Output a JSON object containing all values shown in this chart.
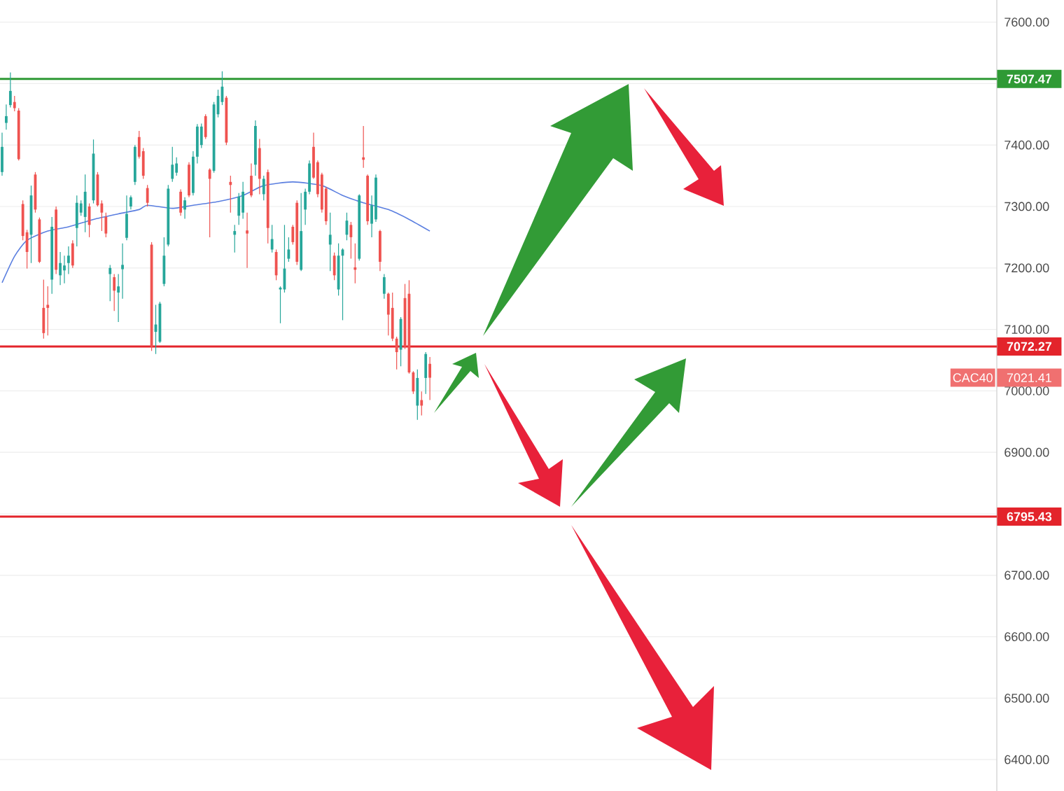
{
  "chart_data": {
    "type": "candlestick",
    "categories": [
      null,
      null,
      null,
      null,
      null,
      null,
      null,
      null,
      null,
      null,
      null,
      null,
      null,
      null,
      null,
      null,
      null,
      null,
      null,
      null,
      null,
      null,
      null,
      null,
      null,
      null,
      null,
      null,
      null,
      null,
      null,
      null,
      null,
      null,
      null,
      null,
      null,
      null,
      null,
      null,
      null,
      null,
      null,
      null,
      null,
      null,
      null,
      null,
      null,
      null,
      null,
      null,
      null,
      null,
      null,
      null,
      null,
      null,
      null,
      null,
      null,
      null,
      null,
      null,
      null,
      null,
      null,
      null,
      null,
      null,
      null,
      null,
      null,
      null,
      null,
      null,
      null,
      null,
      null,
      null,
      null,
      null,
      null,
      null,
      null,
      null,
      null,
      null,
      null,
      null,
      null,
      null,
      null,
      null,
      null,
      null,
      null,
      null,
      null,
      null,
      null,
      null,
      null,
      null,
      null,
      null,
      null,
      null,
      null,
      null,
      null,
      null,
      null,
      null,
      null,
      null,
      null,
      null,
      null,
      null,
      null,
      null,
      null,
      null,
      null,
      null,
      null,
      null,
      null,
      null,
      null,
      null,
      null,
      null,
      null,
      null,
      null,
      null,
      null,
      null,
      null,
      null,
      null,
      null,
      null,
      null,
      null,
      null,
      null,
      null,
      null,
      null,
      null,
      null,
      null,
      null,
      null,
      null,
      null,
      null,
      null,
      null,
      null,
      null,
      null,
      null,
      null,
      null,
      null,
      null,
      null,
      null,
      null,
      null,
      null,
      null,
      null,
      null,
      null,
      null,
      null,
      null,
      null,
      null,
      null,
      null,
      null,
      null,
      null,
      null,
      null,
      null,
      null,
      null,
      null,
      null,
      null,
      null,
      null,
      null,
      null,
      null,
      null,
      null,
      null,
      null,
      null,
      null,
      null,
      null,
      null,
      null,
      null,
      null,
      null,
      null,
      null,
      null,
      null,
      null,
      null,
      null,
      null,
      null,
      null,
      null,
      null,
      null,
      null,
      null,
      null,
      null,
      null,
      null,
      null,
      null,
      null,
      null,
      null,
      null
    ],
    "ohlc": [
      [
        7356,
        7420,
        7350,
        7397
      ],
      [
        7436,
        7466,
        7425,
        7447
      ],
      [
        7465,
        7518,
        7461,
        7488
      ],
      [
        7470,
        7480,
        7455,
        7460
      ],
      [
        7456,
        7460,
        7375,
        7377
      ],
      [
        7304,
        7310,
        7245,
        7252
      ],
      [
        7258,
        7262,
        7199,
        7226
      ],
      [
        7254,
        7334,
        7208,
        7318
      ],
      [
        7352,
        7356,
        7290,
        7295
      ],
      [
        7279,
        7282,
        7208,
        7210
      ],
      [
        7135,
        7181,
        7085,
        7094
      ],
      [
        7140,
        7170,
        7090,
        7135
      ],
      [
        7181,
        7283,
        7158,
        7267
      ],
      [
        7295,
        7300,
        7190,
        7197
      ],
      [
        7188,
        7226,
        7172,
        7208
      ],
      [
        7196,
        7220,
        7175,
        7204
      ],
      [
        7208,
        7235,
        7190,
        7220
      ],
      [
        7240,
        7245,
        7200,
        7204
      ],
      [
        7265,
        7318,
        7235,
        7306
      ],
      [
        7290,
        7310,
        7285,
        7305
      ],
      [
        7283,
        7352,
        7258,
        7324
      ],
      [
        7300,
        7305,
        7250,
        7270
      ],
      [
        7310,
        7409,
        7305,
        7386
      ],
      [
        7352,
        7356,
        7300,
        7302
      ],
      [
        7305,
        7310,
        7260,
        7290
      ],
      [
        7283,
        7290,
        7250,
        7256
      ],
      [
        7190,
        7205,
        7146,
        7200
      ],
      [
        7185,
        7190,
        7130,
        7163
      ],
      [
        7160,
        7190,
        7112,
        7170
      ],
      [
        7198,
        7240,
        7150,
        7205
      ],
      [
        7249,
        7318,
        7245,
        7288
      ],
      [
        7300,
        7318,
        7295,
        7315
      ],
      [
        7340,
        7400,
        7335,
        7397
      ],
      [
        7413,
        7423,
        7378,
        7381
      ],
      [
        7390,
        7395,
        7345,
        7350
      ],
      [
        7330,
        7335,
        7300,
        7306
      ],
      [
        7238,
        7242,
        7065,
        7072
      ],
      [
        7096,
        7140,
        7060,
        7108
      ],
      [
        7080,
        7145,
        7078,
        7142
      ],
      [
        7174,
        7250,
        7170,
        7220
      ],
      [
        7238,
        7335,
        7235,
        7329
      ],
      [
        7345,
        7397,
        7340,
        7368
      ],
      [
        7355,
        7380,
        7350,
        7370
      ],
      [
        7324,
        7328,
        7285,
        7290
      ],
      [
        7295,
        7315,
        7280,
        7310
      ],
      [
        7368,
        7372,
        7315,
        7318
      ],
      [
        7322,
        7390,
        7318,
        7381
      ],
      [
        7381,
        7434,
        7370,
        7430
      ],
      [
        7400,
        7435,
        7395,
        7430
      ],
      [
        7447,
        7450,
        7410,
        7413
      ],
      [
        7360,
        7362,
        7250,
        7345
      ],
      [
        7358,
        7470,
        7355,
        7466
      ],
      [
        7450,
        7490,
        7445,
        7480
      ],
      [
        7470,
        7520,
        7465,
        7495
      ],
      [
        7477,
        7480,
        7400,
        7404
      ],
      [
        7340,
        7350,
        7290,
        7335
      ],
      [
        7254,
        7270,
        7225,
        7260
      ],
      [
        7285,
        7322,
        7270,
        7316
      ],
      [
        7290,
        7340,
        7280,
        7324
      ],
      [
        7261,
        7290,
        7200,
        7256
      ],
      [
        7350,
        7370,
        7315,
        7318
      ],
      [
        7368,
        7440,
        7350,
        7431
      ],
      [
        7395,
        7410,
        7320,
        7345
      ],
      [
        7320,
        7350,
        7310,
        7345
      ],
      [
        7356,
        7360,
        7240,
        7265
      ],
      [
        7230,
        7270,
        7225,
        7247
      ],
      [
        7226,
        7230,
        7180,
        7188
      ],
      [
        7165,
        7170,
        7110,
        7168
      ],
      [
        7165,
        7270,
        7160,
        7199
      ],
      [
        7215,
        7250,
        7210,
        7230
      ],
      [
        7267,
        7270,
        7238,
        7242
      ],
      [
        7306,
        7310,
        7205,
        7210
      ],
      [
        7197,
        7322,
        7195,
        7260
      ],
      [
        7295,
        7329,
        7270,
        7324
      ],
      [
        7324,
        7375,
        7320,
        7370
      ],
      [
        7397,
        7420,
        7345,
        7347
      ],
      [
        7372,
        7375,
        7315,
        7320
      ],
      [
        7352,
        7355,
        7290,
        7295
      ],
      [
        7329,
        7332,
        7270,
        7276
      ],
      [
        7238,
        7290,
        7195,
        7254
      ],
      [
        7220,
        7225,
        7180,
        7188
      ],
      [
        7165,
        7240,
        7155,
        7220
      ],
      [
        7220,
        7232,
        7115,
        7230
      ],
      [
        7254,
        7290,
        7245,
        7277
      ],
      [
        7270,
        7275,
        7215,
        7250
      ],
      [
        7201,
        7240,
        7175,
        7197
      ],
      [
        7215,
        7320,
        7212,
        7318
      ],
      [
        7380,
        7431,
        7363,
        7376
      ],
      [
        7350,
        7352,
        7270,
        7276
      ],
      [
        7272,
        7318,
        7250,
        7302
      ],
      [
        7279,
        7352,
        7275,
        7347
      ],
      [
        7260,
        7262,
        7195,
        7210
      ],
      [
        7158,
        7190,
        7150,
        7185
      ],
      [
        7158,
        7160,
        7090,
        7124
      ],
      [
        7135,
        7160,
        7081,
        7085
      ],
      [
        7085,
        7088,
        7035,
        7063
      ],
      [
        7067,
        7120,
        7040,
        7117
      ],
      [
        7151,
        7174,
        7068,
        7072
      ],
      [
        7158,
        7180,
        7028,
        7030
      ],
      [
        7030,
        7032,
        6995,
        6999
      ],
      [
        6976,
        7035,
        6953,
        7021
      ],
      [
        6985,
        6999,
        6960,
        6976
      ],
      [
        7021,
        7063,
        6995,
        7060
      ],
      [
        7044,
        7055,
        6985,
        7021.41
      ],
      null,
      null,
      null,
      null,
      null,
      null,
      null,
      null,
      null,
      null,
      null,
      null,
      null,
      null,
      null,
      null,
      null,
      null,
      null,
      null,
      null,
      null,
      null,
      null,
      null,
      null,
      null,
      null,
      null,
      null,
      null,
      null,
      null,
      null,
      null,
      null,
      null,
      null,
      null,
      null,
      null,
      null,
      null,
      null,
      null,
      null,
      null,
      null,
      null,
      null,
      null,
      null,
      null,
      null,
      null,
      null,
      null,
      null,
      null,
      null,
      null,
      null,
      null,
      null,
      null,
      null,
      null,
      null,
      null,
      null,
      null,
      null,
      null,
      null,
      null,
      null,
      null,
      null,
      null,
      null,
      null,
      null,
      null,
      null,
      null,
      null,
      null,
      null,
      null,
      null,
      null,
      null,
      null,
      null,
      null,
      null,
      null,
      null,
      null,
      null,
      null,
      null,
      null,
      null,
      null,
      null,
      null,
      null,
      null,
      null,
      null,
      null,
      null,
      null,
      null,
      null,
      null,
      null,
      null,
      null,
      null,
      null,
      null,
      null,
      null,
      null,
      null,
      null,
      null,
      null,
      null,
      null,
      null,
      null,
      null,
      null
    ],
    "colors": [
      "#26a69a",
      "#26a69a",
      "#26a69a",
      "#ef5350",
      "#ef5350",
      "#ef5350",
      "#ef5350",
      "#26a69a",
      "#ef5350",
      "#ef5350",
      "#ef5350",
      "#ef5350",
      "#26a69a",
      "#ef5350",
      "#26a69a",
      "#26a69a",
      "#26a69a",
      "#ef5350",
      "#26a69a",
      "#26a69a",
      "#26a69a",
      "#ef5350",
      "#26a69a",
      "#ef5350",
      "#ef5350",
      "#ef5350",
      "#26a69a",
      "#ef5350",
      "#26a69a",
      "#26a69a",
      "#26a69a",
      "#26a69a",
      "#26a69a",
      "#ef5350",
      "#ef5350",
      "#ef5350",
      "#ef5350",
      "#26a69a",
      "#26a69a",
      "#26a69a",
      "#26a69a",
      "#26a69a",
      "#26a69a",
      "#ef5350",
      "#26a69a",
      "#ef5350",
      "#26a69a",
      "#26a69a",
      "#26a69a",
      "#ef5350",
      "#ef5350",
      "#26a69a",
      "#26a69a",
      "#26a69a",
      "#ef5350",
      "#ef5350",
      "#26a69a",
      "#26a69a",
      "#26a69a",
      "#ef5350",
      "#ef5350",
      "#26a69a",
      "#ef5350",
      "#26a69a",
      "#ef5350",
      "#26a69a",
      "#ef5350",
      "#26a69a",
      "#26a69a",
      "#26a69a",
      "#ef5350",
      "#ef5350",
      "#26a69a",
      "#26a69a",
      "#26a69a",
      "#ef5350",
      "#ef5350",
      "#ef5350",
      "#ef5350",
      "#26a69a",
      "#ef5350",
      "#26a69a",
      "#26a69a",
      "#26a69a",
      "#ef5350",
      "#ef5350",
      "#26a69a",
      "#ef5350",
      "#ef5350",
      "#26a69a",
      "#26a69a",
      "#ef5350",
      "#26a69a",
      "#ef5350",
      "#ef5350",
      "#ef5350",
      "#26a69a",
      "#ef5350",
      "#ef5350",
      "#ef5350",
      "#26a69a",
      "#ef5350",
      "#26a69a",
      "#ef5350",
      null,
      null,
      null,
      null,
      null,
      null,
      null,
      null,
      null,
      null,
      null,
      null,
      null,
      null,
      null,
      null,
      null,
      null,
      null,
      null,
      null,
      null,
      null,
      null,
      null,
      null,
      null,
      null,
      null,
      null,
      null,
      null,
      null,
      null,
      null,
      null,
      null,
      null,
      null,
      null,
      null,
      null,
      null,
      null,
      null,
      null,
      null,
      null,
      null,
      null,
      null,
      null,
      null,
      null,
      null,
      null,
      null,
      null,
      null,
      null,
      null,
      null,
      null,
      null,
      null,
      null,
      null,
      null,
      null,
      null,
      null,
      null,
      null,
      null,
      null,
      null,
      null,
      null,
      null,
      null,
      null,
      null,
      null,
      null,
      null,
      null,
      null,
      null,
      null,
      null,
      null,
      null,
      null,
      null,
      null,
      null,
      null,
      null,
      null,
      null,
      null,
      null,
      null,
      null,
      null,
      null,
      null,
      null,
      null,
      null,
      null,
      null,
      null,
      null,
      null,
      null,
      null,
      null,
      null,
      null,
      null,
      null,
      null,
      null,
      null,
      null,
      null,
      null,
      null,
      null,
      null,
      null,
      null,
      null,
      null,
      null
    ],
    "series": [
      {
        "type": "line",
        "color": "#5b7fe0",
        "values": [
          7176,
          null,
          null,
          7219,
          null,
          null,
          7245,
          null,
          null,
          null,
          null,
          7260,
          null,
          null,
          null,
          null,
          7267,
          null,
          null,
          null,
          null,
          null,
          7279,
          null,
          null,
          null,
          null,
          null,
          7288,
          null,
          null,
          null,
          null,
          7295,
          null,
          7302,
          null,
          null,
          null,
          null,
          null,
          7297,
          null,
          null,
          null,
          null,
          7302,
          null,
          null,
          null,
          null,
          null,
          7308,
          null,
          null,
          null,
          null,
          null,
          7318,
          null,
          null,
          null,
          null,
          7334,
          null,
          null,
          null,
          null,
          null,
          null,
          7340,
          null,
          null,
          null,
          null,
          null,
          null,
          7334,
          null,
          null,
          null,
          null,
          7318,
          null,
          null,
          null,
          null,
          7306,
          null,
          null,
          null,
          null,
          null,
          7295,
          null,
          null,
          null,
          null,
          7279,
          null,
          null,
          null,
          null,
          7260,
          null,
          null,
          null,
          null,
          null,
          null,
          null,
          null,
          null,
          null,
          null,
          null,
          null,
          null,
          null,
          null,
          null,
          null,
          null,
          null,
          null,
          null,
          null,
          null,
          null,
          null,
          null,
          null,
          null,
          null,
          null,
          null,
          null,
          null,
          null,
          null,
          null,
          null,
          null,
          null,
          null,
          null,
          null,
          null,
          null,
          null,
          null,
          null,
          null,
          null,
          null,
          null,
          null,
          null,
          null,
          null,
          null,
          null,
          null,
          null,
          null,
          null,
          null,
          null,
          null,
          null,
          null,
          null,
          null,
          null,
          null,
          null,
          null,
          null,
          null,
          null,
          null,
          null,
          null,
          null,
          null,
          null,
          null,
          null,
          null,
          null,
          null,
          null,
          null,
          null,
          null,
          null,
          null,
          null,
          null,
          null,
          null,
          null,
          null,
          null,
          null,
          null,
          null,
          null,
          null,
          null,
          null,
          null,
          null,
          null,
          null,
          null,
          null,
          null,
          null,
          null,
          null,
          null,
          null,
          null,
          null,
          null,
          null,
          null,
          null,
          null,
          null,
          null,
          null,
          null,
          null,
          null,
          null,
          null,
          null,
          null
        ]
      }
    ],
    "ylim": [
      6349,
      7636
    ],
    "yticks": [
      {
        "value": 6400,
        "label": "6400.00"
      },
      {
        "value": 6500,
        "label": "6500.00"
      },
      {
        "value": 6600,
        "label": "6600.00"
      },
      {
        "value": 6700,
        "label": "6700.00"
      },
      {
        "value": 6800,
        "label": null
      },
      {
        "value": 6900,
        "label": "6900.00"
      },
      {
        "value": 7000,
        "label": "7000.00"
      },
      {
        "value": 7100,
        "label": "7100.00"
      },
      {
        "value": 7200,
        "label": "7200.00"
      },
      {
        "value": 7300,
        "label": "7300.00"
      },
      {
        "value": 7400,
        "label": "7400.00"
      },
      {
        "value": 7500,
        "label": null
      },
      {
        "value": 7600,
        "label": "7600.00"
      }
    ],
    "grid": "y",
    "tick_labels": "y",
    "ref_lines": [
      {
        "axis": "y",
        "value": 7507.47,
        "label": "7507.47",
        "color": "#2f9a35"
      },
      {
        "axis": "y",
        "value": 7072.27,
        "label": "7072.27",
        "color": "#e3242b"
      },
      {
        "axis": "y",
        "value": 6795.43,
        "label": "6795.43",
        "color": "#e3242b"
      }
    ],
    "annotations": [
      "CAC40",
      "7021.41"
    ]
  }
}
